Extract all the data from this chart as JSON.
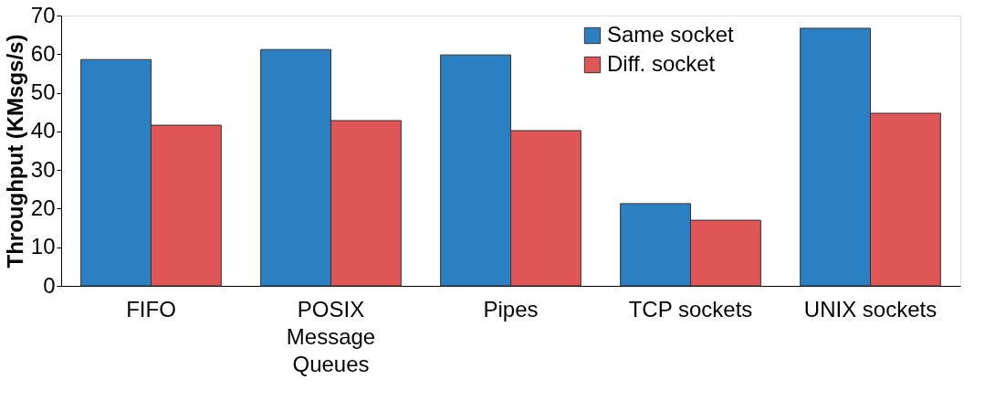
{
  "chart_data": {
    "type": "bar",
    "ylabel": "Throughput (KMsgs/s)",
    "categories": [
      "FIFO",
      "POSIX Message Queues",
      "Pipes",
      "TCP sockets",
      "UNIX sockets"
    ],
    "series": [
      {
        "name": "Same socket",
        "color": "#2a80c2",
        "values": [
          58.6,
          61.2,
          59.8,
          21.3,
          66.7
        ]
      },
      {
        "name": "Diff. socket",
        "color": "#e05656",
        "values": [
          41.6,
          42.8,
          40.2,
          17.0,
          44.7
        ]
      }
    ],
    "ylim": [
      0,
      70
    ],
    "yticks": [
      0,
      10,
      20,
      30,
      40,
      50,
      60,
      70
    ],
    "grid": false,
    "legend": "top right"
  }
}
